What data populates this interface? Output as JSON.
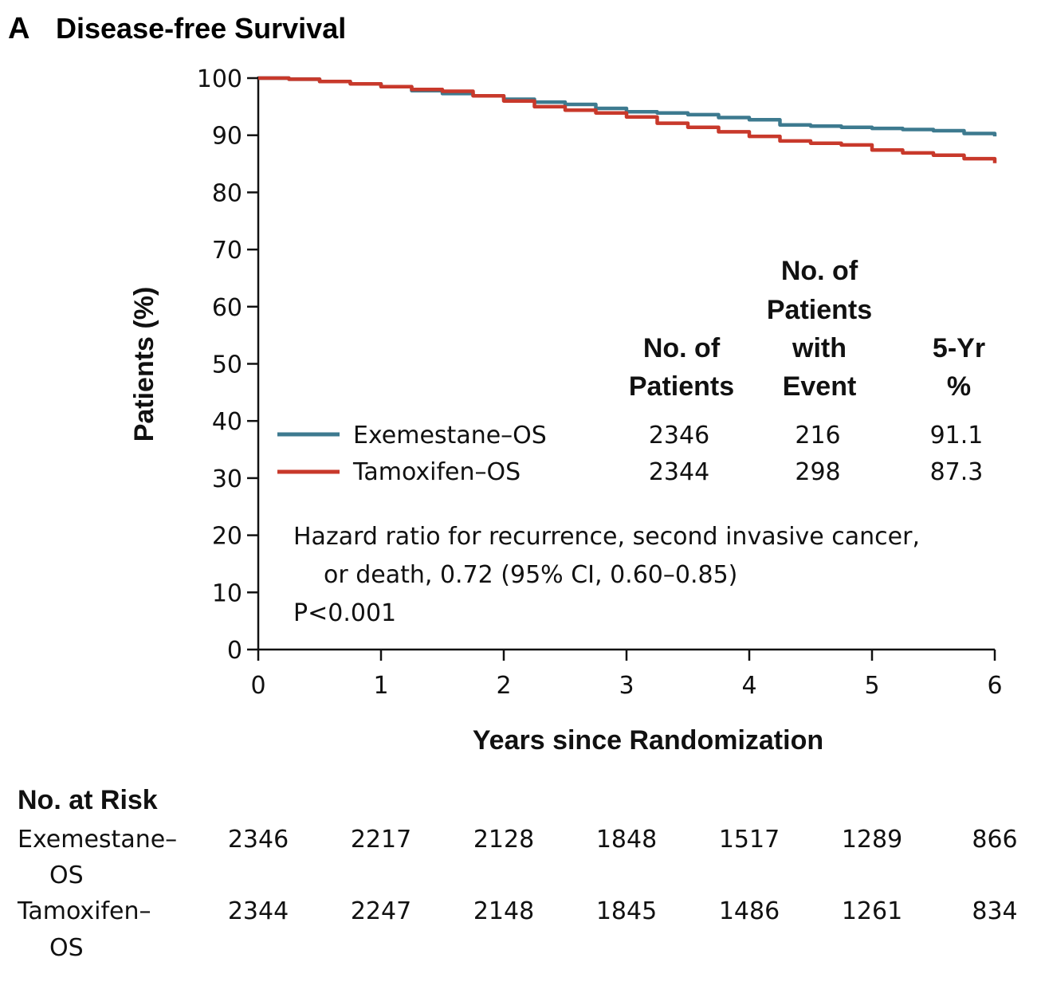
{
  "panel": {
    "letter": "A",
    "title": "Disease-free Survival"
  },
  "chart_data": {
    "type": "line",
    "title": "Disease-free Survival",
    "xlabel": "Years since Randomization",
    "ylabel": "Patients (%)",
    "xlim": [
      0,
      6
    ],
    "ylim": [
      0,
      100
    ],
    "x_ticks": [
      0,
      1,
      2,
      3,
      4,
      5,
      6
    ],
    "y_ticks": [
      0,
      10,
      20,
      30,
      40,
      50,
      60,
      70,
      80,
      90,
      100
    ],
    "grid": false,
    "series": [
      {
        "name": "Exemestane–OS",
        "color": "#3d7a8f",
        "x": [
          0,
          0.25,
          0.5,
          0.75,
          1.0,
          1.25,
          1.5,
          1.75,
          2.0,
          2.25,
          2.5,
          2.75,
          3.0,
          3.25,
          3.5,
          3.75,
          4.0,
          4.25,
          4.5,
          4.75,
          5.0,
          5.25,
          5.5,
          5.75,
          6.0
        ],
        "y": [
          100,
          99.8,
          99.4,
          99.0,
          98.5,
          97.8,
          97.3,
          96.9,
          96.3,
          95.8,
          95.4,
          94.7,
          94.1,
          93.9,
          93.6,
          93.1,
          92.7,
          91.8,
          91.6,
          91.4,
          91.2,
          91.0,
          90.8,
          90.3,
          89.8
        ]
      },
      {
        "name": "Tamoxifen–OS",
        "color": "#c8392b",
        "x": [
          0,
          0.25,
          0.5,
          0.75,
          1.0,
          1.25,
          1.5,
          1.75,
          2.0,
          2.25,
          2.5,
          2.75,
          3.0,
          3.25,
          3.5,
          3.75,
          4.0,
          4.25,
          4.5,
          4.75,
          5.0,
          5.25,
          5.5,
          5.75,
          6.0
        ],
        "y": [
          100,
          99.8,
          99.4,
          99.0,
          98.5,
          98.0,
          97.7,
          96.9,
          96.0,
          95.0,
          94.4,
          93.9,
          93.2,
          92.1,
          91.4,
          90.6,
          89.8,
          89.0,
          88.6,
          88.3,
          87.4,
          86.9,
          86.5,
          85.9,
          85.1
        ]
      }
    ]
  },
  "legend_table": {
    "headers": {
      "patients": [
        "No. of",
        "Patients"
      ],
      "events": [
        "No. of",
        "Patients",
        "with",
        "Event"
      ],
      "five_yr": [
        "5-Yr",
        "%"
      ]
    },
    "rows": [
      {
        "label": "Exemestane–OS",
        "patients": "2346",
        "events": "216",
        "five_yr": "91.1"
      },
      {
        "label": "Tamoxifen–OS",
        "patients": "2344",
        "events": "298",
        "five_yr": "87.3"
      }
    ]
  },
  "annotation": {
    "line1": "Hazard ratio for recurrence, second invasive cancer,",
    "line2": "or death, 0.72 (95% CI, 0.60–0.85)",
    "line3": "P<0.001"
  },
  "at_risk": {
    "title": "No. at Risk",
    "rows": [
      {
        "label_line1": "Exemestane–",
        "label_line2": "OS",
        "values": [
          "2346",
          "2217",
          "2128",
          "1848",
          "1517",
          "1289",
          "866"
        ]
      },
      {
        "label_line1": "Tamoxifen–",
        "label_line2": "OS",
        "values": [
          "2344",
          "2247",
          "2148",
          "1845",
          "1486",
          "1261",
          "834"
        ]
      }
    ]
  }
}
